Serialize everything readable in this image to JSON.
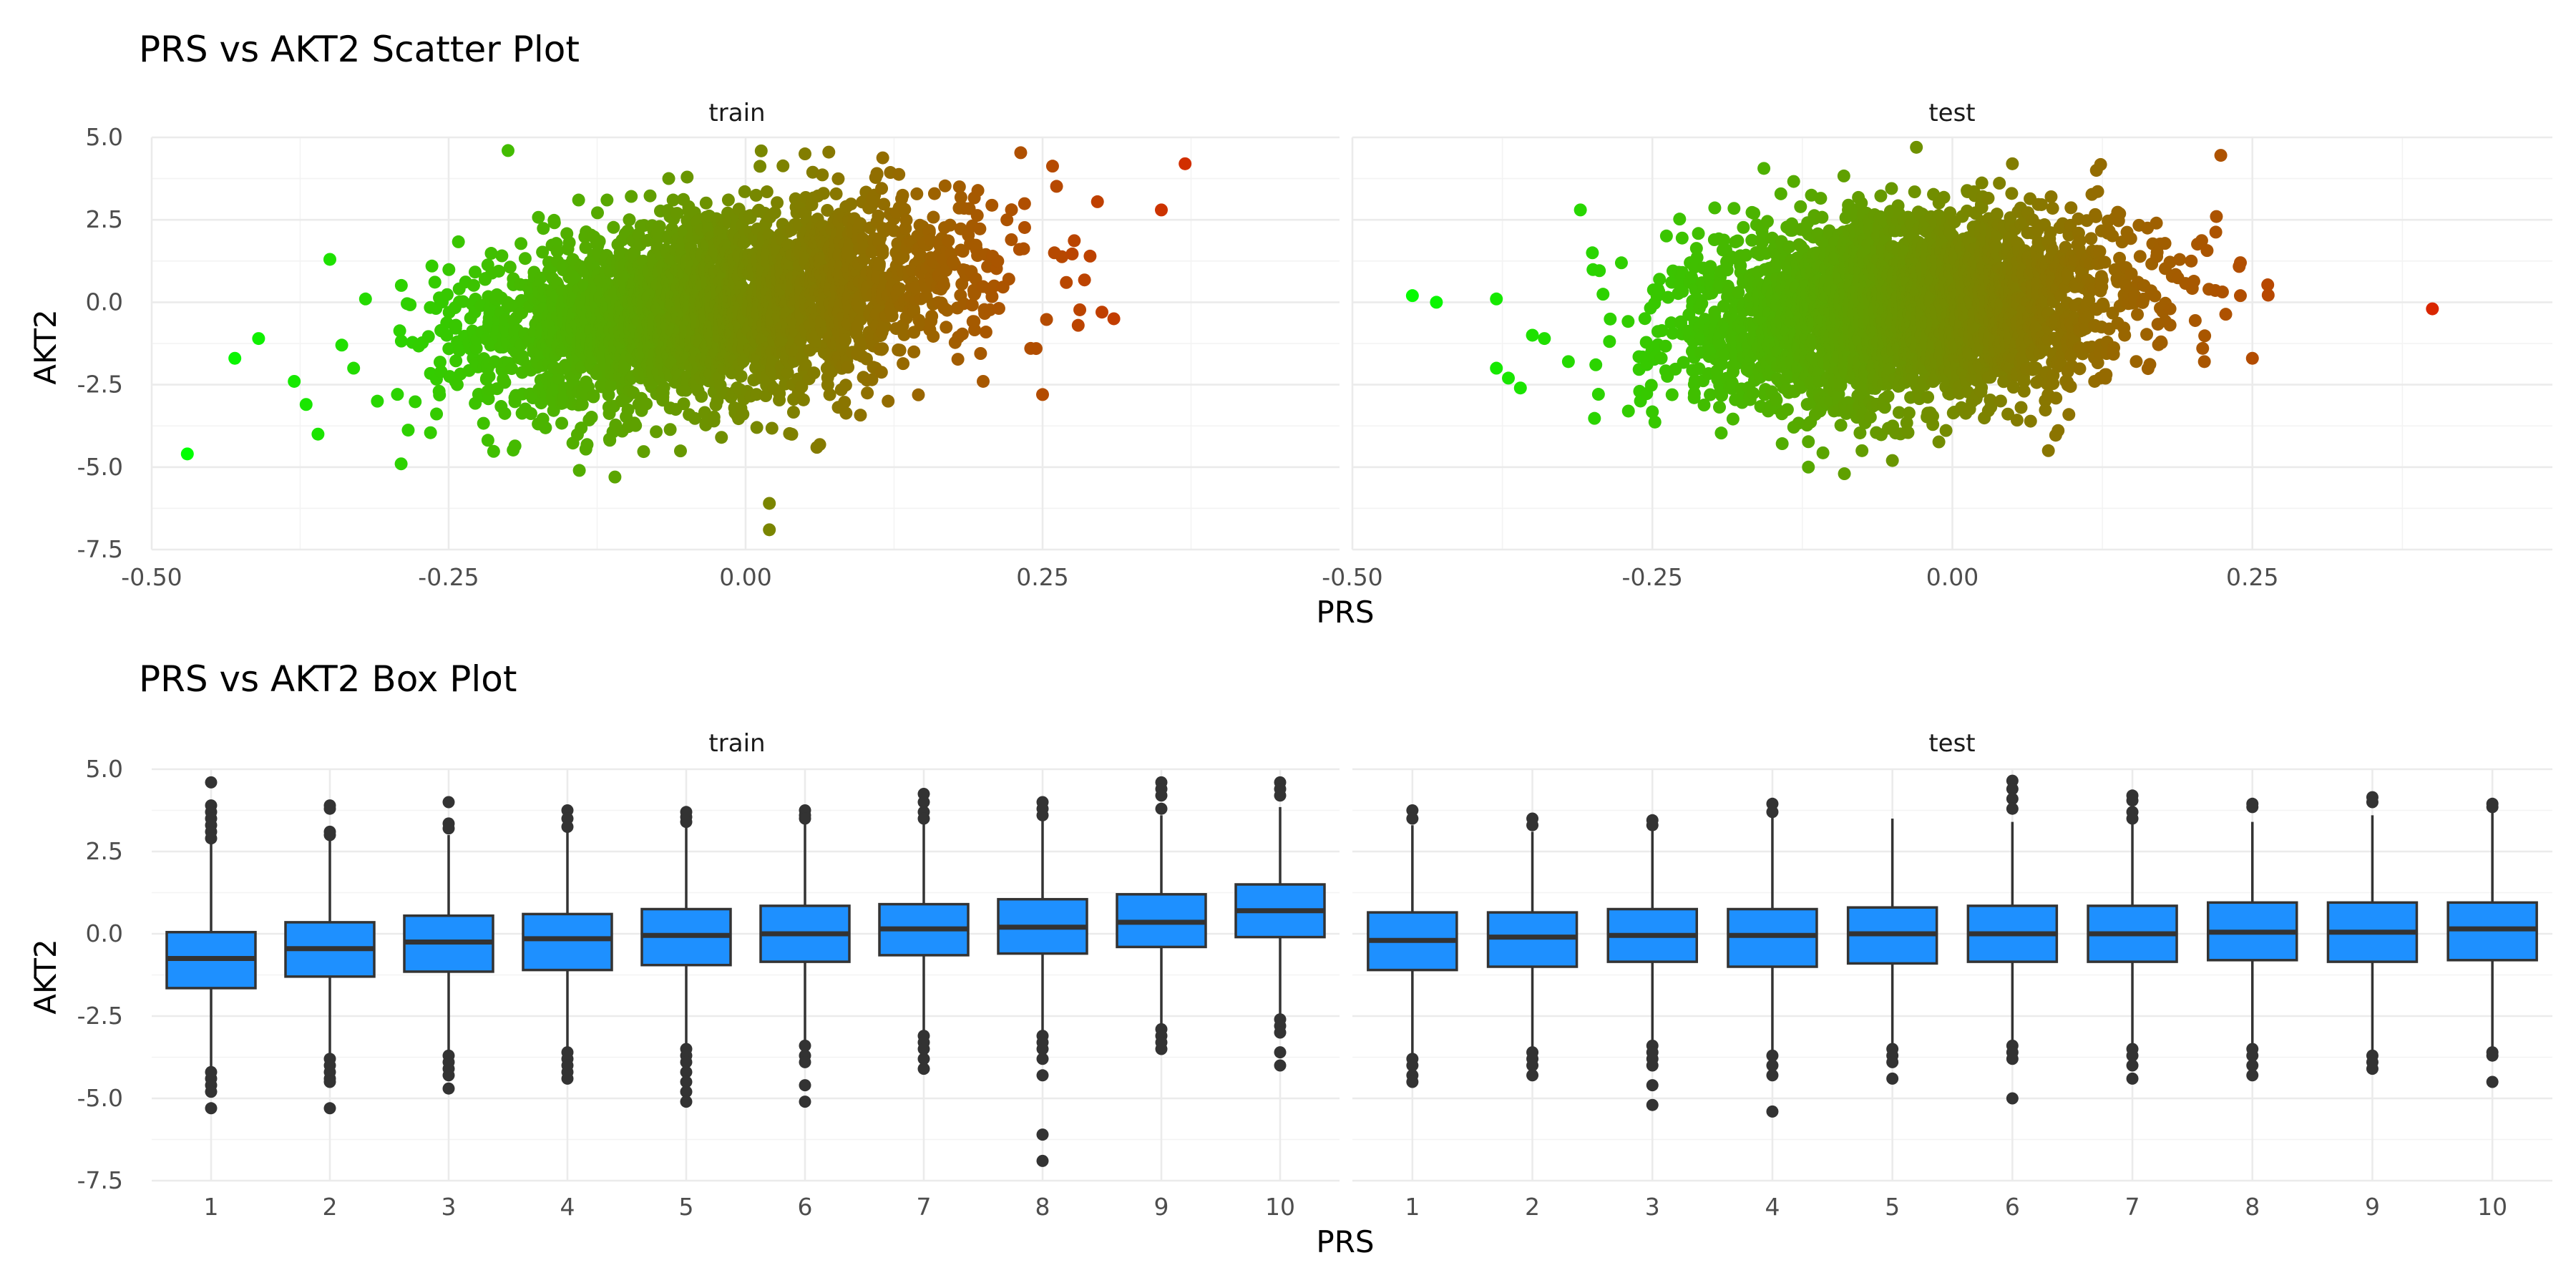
{
  "chart_data": [
    {
      "type": "scatter",
      "title": "PRS vs AKT2 Scatter Plot",
      "xlabel": "PRS",
      "ylabel": "AKT2",
      "xlim": [
        -0.5,
        0.5
      ],
      "ylim": [
        -7.5,
        5.0
      ],
      "xticks": [
        "-0.50",
        "-0.25",
        "0.00",
        "0.25"
      ],
      "yticks": [
        "5.0",
        "2.5",
        "0.0",
        "-2.5",
        "-5.0",
        "-7.5"
      ],
      "color_scale": {
        "variable": "PRS",
        "low": "#00ff00",
        "high": "#ff0000"
      },
      "grid": true,
      "legend": "none",
      "panels": [
        {
          "name": "train",
          "cloud": {
            "x_mean": -0.03,
            "x_sd": 0.1,
            "y_mean": -0.2,
            "y_sd": 1.5,
            "correlation": 0.35
          },
          "points": [
            [
              -0.47,
              -4.6
            ],
            [
              -0.43,
              -1.7
            ],
            [
              -0.41,
              -1.1
            ],
            [
              -0.38,
              -2.4
            ],
            [
              -0.37,
              -3.1
            ],
            [
              -0.36,
              -4.0
            ],
            [
              -0.35,
              1.3
            ],
            [
              -0.34,
              -1.3
            ],
            [
              -0.33,
              -2.0
            ],
            [
              -0.32,
              0.1
            ],
            [
              -0.31,
              -3.0
            ],
            [
              -0.29,
              -4.9
            ],
            [
              -0.2,
              4.6
            ],
            [
              -0.11,
              -5.3
            ],
            [
              -0.14,
              -5.1
            ],
            [
              0.02,
              -6.1
            ],
            [
              0.02,
              -6.9
            ],
            [
              0.06,
              -4.4
            ],
            [
              0.05,
              4.5
            ],
            [
              0.12,
              -3.0
            ],
            [
              0.18,
              3.5
            ],
            [
              0.2,
              -2.4
            ],
            [
              0.22,
              2.5
            ],
            [
              0.24,
              -1.4
            ],
            [
              0.25,
              -2.8
            ],
            [
              0.26,
              1.5
            ],
            [
              0.29,
              1.4
            ],
            [
              0.3,
              -0.3
            ],
            [
              0.31,
              -0.5
            ],
            [
              0.28,
              -0.7
            ],
            [
              0.27,
              0.6
            ],
            [
              0.35,
              2.8
            ],
            [
              0.37,
              4.2
            ]
          ]
        },
        {
          "name": "test",
          "cloud": {
            "x_mean": -0.04,
            "x_sd": 0.09,
            "y_mean": -0.2,
            "y_sd": 1.45,
            "correlation": 0.15
          },
          "points": [
            [
              -0.45,
              0.2
            ],
            [
              -0.43,
              0.0
            ],
            [
              -0.38,
              0.1
            ],
            [
              -0.38,
              -2.0
            ],
            [
              -0.37,
              -2.3
            ],
            [
              -0.36,
              -2.6
            ],
            [
              -0.35,
              -1.0
            ],
            [
              -0.34,
              -1.1
            ],
            [
              -0.32,
              -1.8
            ],
            [
              -0.31,
              2.8
            ],
            [
              -0.3,
              1.5
            ],
            [
              -0.27,
              -3.3
            ],
            [
              -0.03,
              4.7
            ],
            [
              -0.09,
              -5.2
            ],
            [
              -0.05,
              -4.8
            ],
            [
              -0.12,
              -5.0
            ],
            [
              0.05,
              4.2
            ],
            [
              0.08,
              -4.5
            ],
            [
              0.12,
              4.0
            ],
            [
              0.17,
              2.4
            ],
            [
              0.21,
              -1.8
            ],
            [
              0.22,
              2.6
            ],
            [
              0.24,
              1.2
            ],
            [
              0.25,
              -1.7
            ],
            [
              0.24,
              0.2
            ],
            [
              0.4,
              -0.2
            ]
          ]
        }
      ]
    },
    {
      "type": "box",
      "title": "PRS vs AKT2 Box Plot",
      "xlabel": "PRS",
      "ylabel": "AKT2",
      "ylim": [
        -7.5,
        5.0
      ],
      "categories": [
        "1",
        "2",
        "3",
        "4",
        "5",
        "6",
        "7",
        "8",
        "9",
        "10"
      ],
      "yticks": [
        "5.0",
        "2.5",
        "0.0",
        "-2.5",
        "-5.0",
        "-7.5"
      ],
      "box_fill": "#1e90ff",
      "box_line": "#333333",
      "grid": true,
      "panels": [
        {
          "name": "train",
          "boxes": [
            {
              "q1": -1.65,
              "median": -0.75,
              "q3": 0.05,
              "low": -4.1,
              "high": 2.85,
              "outliers": [
                4.6,
                3.9,
                3.7,
                3.5,
                3.3,
                3.1,
                2.9,
                -4.2,
                -4.4,
                -4.6,
                -4.8,
                -5.3
              ]
            },
            {
              "q1": -1.3,
              "median": -0.45,
              "q3": 0.35,
              "low": -3.75,
              "high": 2.85,
              "outliers": [
                3.9,
                3.8,
                3.1,
                3.0,
                -3.8,
                -4.0,
                -4.2,
                -4.4,
                -4.5,
                -5.3
              ]
            },
            {
              "q1": -1.15,
              "median": -0.25,
              "q3": 0.55,
              "low": -3.6,
              "high": 3.0,
              "outliers": [
                4.0,
                3.35,
                3.2,
                -3.7,
                -3.9,
                -4.1,
                -4.3,
                -4.7
              ]
            },
            {
              "q1": -1.1,
              "median": -0.15,
              "q3": 0.6,
              "low": -3.55,
              "high": 3.1,
              "outliers": [
                3.75,
                3.5,
                3.25,
                -3.6,
                -3.8,
                -4.0,
                -4.2,
                -4.4
              ]
            },
            {
              "q1": -0.95,
              "median": -0.05,
              "q3": 0.75,
              "low": -3.4,
              "high": 3.3,
              "outliers": [
                3.7,
                3.55,
                3.4,
                -3.5,
                -3.7,
                -3.9,
                -4.2,
                -4.5,
                -4.8,
                -5.1
              ]
            },
            {
              "q1": -0.85,
              "median": 0.0,
              "q3": 0.85,
              "low": -3.3,
              "high": 3.4,
              "outliers": [
                3.75,
                3.6,
                3.5,
                -3.4,
                -3.7,
                -3.9,
                -4.6,
                -5.1
              ]
            },
            {
              "q1": -0.65,
              "median": 0.15,
              "q3": 0.9,
              "low": -3.0,
              "high": 3.35,
              "outliers": [
                4.25,
                4.0,
                3.7,
                3.5,
                -3.1,
                -3.3,
                -3.5,
                -3.8,
                -4.1
              ]
            },
            {
              "q1": -0.6,
              "median": 0.2,
              "q3": 1.05,
              "low": -2.95,
              "high": 3.45,
              "outliers": [
                4.0,
                3.8,
                3.6,
                -3.1,
                -3.3,
                -3.5,
                -3.8,
                -4.3,
                -6.1,
                -6.9
              ]
            },
            {
              "q1": -0.4,
              "median": 0.35,
              "q3": 1.2,
              "low": -2.75,
              "high": 3.6,
              "outliers": [
                4.6,
                4.4,
                4.2,
                3.8,
                -2.9,
                -3.1,
                -3.3,
                -3.5
              ]
            },
            {
              "q1": -0.1,
              "median": 0.7,
              "q3": 1.5,
              "low": -2.5,
              "high": 3.85,
              "outliers": [
                4.6,
                4.4,
                4.2,
                -2.6,
                -2.8,
                -3.0,
                -3.6,
                -4.0
              ]
            }
          ]
        },
        {
          "name": "test",
          "boxes": [
            {
              "q1": -1.1,
              "median": -0.2,
              "q3": 0.65,
              "low": -3.7,
              "high": 3.3,
              "outliers": [
                3.75,
                3.5,
                -3.8,
                -4.0,
                -4.3,
                -4.5
              ]
            },
            {
              "q1": -1.0,
              "median": -0.1,
              "q3": 0.65,
              "low": -3.5,
              "high": 3.1,
              "outliers": [
                3.5,
                3.3,
                -3.6,
                -3.8,
                -4.0,
                -4.3
              ]
            },
            {
              "q1": -0.85,
              "median": -0.05,
              "q3": 0.75,
              "low": -3.25,
              "high": 3.25,
              "outliers": [
                3.45,
                3.3,
                -3.4,
                -3.6,
                -3.8,
                -4.0,
                -4.6,
                -5.2
              ]
            },
            {
              "q1": -1.0,
              "median": -0.05,
              "q3": 0.75,
              "low": -3.6,
              "high": 3.55,
              "outliers": [
                3.95,
                3.7,
                -3.7,
                -4.0,
                -4.3,
                -5.4
              ]
            },
            {
              "q1": -0.9,
              "median": 0.0,
              "q3": 0.8,
              "low": -3.45,
              "high": 3.5,
              "outliers": [
                -3.5,
                -3.7,
                -3.9,
                -4.4
              ]
            },
            {
              "q1": -0.85,
              "median": 0.0,
              "q3": 0.85,
              "low": -3.35,
              "high": 3.4,
              "outliers": [
                4.65,
                4.4,
                4.1,
                3.8,
                -3.4,
                -3.6,
                -3.8,
                -5.0
              ]
            },
            {
              "q1": -0.85,
              "median": 0.0,
              "q3": 0.85,
              "low": -3.4,
              "high": 3.4,
              "outliers": [
                4.2,
                4.05,
                3.7,
                3.5,
                -3.5,
                -3.7,
                -4.0,
                -4.4
              ]
            },
            {
              "q1": -0.8,
              "median": 0.05,
              "q3": 0.95,
              "low": -3.35,
              "high": 3.4,
              "outliers": [
                3.95,
                3.85,
                -3.5,
                -3.7,
                -4.0,
                -4.3
              ]
            },
            {
              "q1": -0.85,
              "median": 0.05,
              "q3": 0.95,
              "low": -3.6,
              "high": 3.6,
              "outliers": [
                4.15,
                4.0,
                -3.7,
                -3.9,
                -4.1
              ]
            },
            {
              "q1": -0.8,
              "median": 0.15,
              "q3": 0.95,
              "low": -3.5,
              "high": 3.7,
              "outliers": [
                3.95,
                3.85,
                -3.6,
                -3.7,
                -4.5
              ]
            }
          ]
        }
      ]
    }
  ]
}
